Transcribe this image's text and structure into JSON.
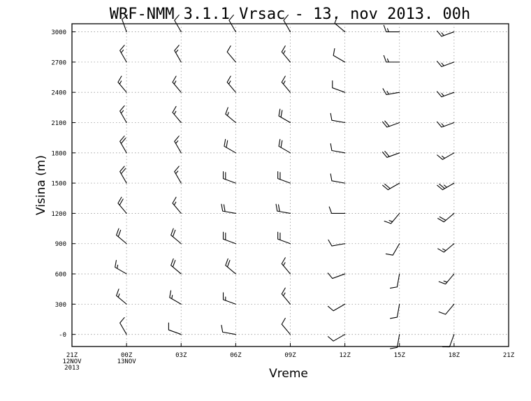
{
  "chart_data": {
    "type": "wind-barb-time-height",
    "title": "WRF-NMM 3.1.1 Vrsac - 13. nov 2013. 00h",
    "xlabel": "Vreme",
    "ylabel": "Visina (m)",
    "ylim": [
      -120,
      3080
    ],
    "y_ticks": [
      "-0",
      "300",
      "600",
      "900",
      "1200",
      "1500",
      "1800",
      "2100",
      "2400",
      "2700",
      "3000"
    ],
    "y_values": [
      0,
      300,
      600,
      900,
      1200,
      1500,
      1800,
      2100,
      2400,
      2700,
      3000
    ],
    "x_ticks": [
      {
        "lines": [
          "21Z",
          "12NOV",
          "2013"
        ]
      },
      {
        "lines": [
          "00Z",
          "13NOV"
        ]
      },
      {
        "lines": [
          "03Z"
        ]
      },
      {
        "lines": [
          "06Z"
        ]
      },
      {
        "lines": [
          "09Z"
        ]
      },
      {
        "lines": [
          "12Z"
        ]
      },
      {
        "lines": [
          "15Z"
        ]
      },
      {
        "lines": [
          "18Z"
        ]
      },
      {
        "lines": [
          "21Z"
        ]
      }
    ],
    "grid": true,
    "barb_columns": [
      "00Z",
      "03Z",
      "06Z",
      "09Z",
      "12Z",
      "15Z",
      "18Z"
    ],
    "barbs": [
      [
        [
          330,
          10
        ],
        [
          310,
          15
        ],
        [
          300,
          15
        ],
        [
          310,
          20
        ],
        [
          320,
          20
        ],
        [
          330,
          20
        ],
        [
          330,
          20
        ],
        [
          330,
          15
        ],
        [
          320,
          15
        ],
        [
          330,
          15
        ],
        [
          340,
          10
        ]
      ],
      [
        [
          290,
          10
        ],
        [
          300,
          15
        ],
        [
          310,
          20
        ],
        [
          310,
          20
        ],
        [
          320,
          15
        ],
        [
          330,
          15
        ],
        [
          330,
          15
        ],
        [
          320,
          15
        ],
        [
          320,
          15
        ],
        [
          330,
          15
        ],
        [
          330,
          10
        ]
      ],
      [
        [
          280,
          10
        ],
        [
          290,
          15
        ],
        [
          310,
          20
        ],
        [
          290,
          20
        ],
        [
          280,
          20
        ],
        [
          290,
          20
        ],
        [
          300,
          20
        ],
        [
          310,
          15
        ],
        [
          320,
          15
        ],
        [
          320,
          10
        ],
        [
          330,
          10
        ]
      ],
      [
        [
          320,
          10
        ],
        [
          320,
          15
        ],
        [
          320,
          15
        ],
        [
          290,
          20
        ],
        [
          280,
          20
        ],
        [
          290,
          20
        ],
        [
          300,
          20
        ],
        [
          300,
          20
        ],
        [
          320,
          15
        ],
        [
          320,
          15
        ],
        [
          330,
          10
        ]
      ],
      [
        [
          240,
          10
        ],
        [
          240,
          10
        ],
        [
          250,
          10
        ],
        [
          260,
          10
        ],
        [
          270,
          10
        ],
        [
          280,
          10
        ],
        [
          280,
          10
        ],
        [
          280,
          10
        ],
        [
          290,
          10
        ],
        [
          300,
          10
        ],
        [
          310,
          10
        ]
      ],
      [
        [
          190,
          10
        ],
        [
          190,
          10
        ],
        [
          190,
          10
        ],
        [
          210,
          10
        ],
        [
          220,
          15
        ],
        [
          240,
          20
        ],
        [
          250,
          20
        ],
        [
          250,
          20
        ],
        [
          260,
          15
        ],
        [
          270,
          15
        ],
        [
          270,
          15
        ]
      ],
      [
        [
          200,
          10
        ],
        [
          220,
          10
        ],
        [
          220,
          15
        ],
        [
          230,
          15
        ],
        [
          230,
          20
        ],
        [
          240,
          25
        ],
        [
          240,
          15
        ],
        [
          250,
          15
        ],
        [
          250,
          15
        ],
        [
          250,
          15
        ],
        [
          250,
          15
        ]
      ]
    ]
  }
}
